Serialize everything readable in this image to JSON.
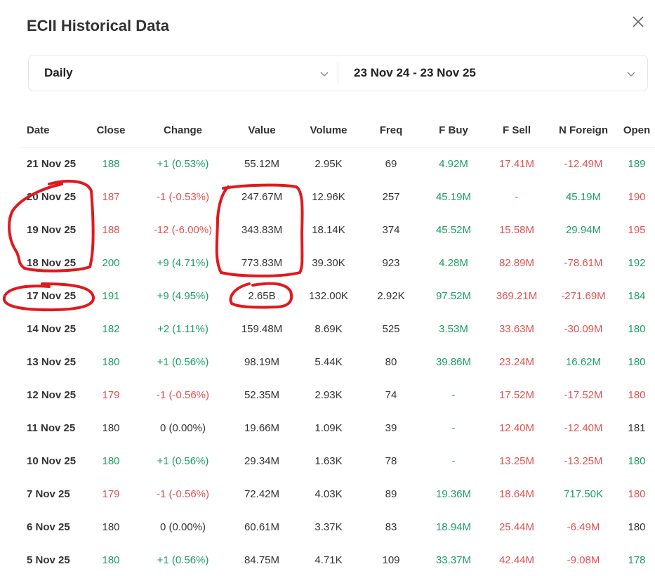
{
  "header": {
    "title": "ECII Historical Data"
  },
  "icons": {
    "close": "close-icon",
    "chevron": "chevron-down-icon"
  },
  "filters": {
    "period": "Daily",
    "date_range": "23 Nov 24 - 23 Nov 25"
  },
  "colors": {
    "up": "#1a9e63",
    "down": "#e05252",
    "annotation": "#e0191e"
  },
  "table": {
    "columns": [
      "Date",
      "Close",
      "Change",
      "Value",
      "Volume",
      "Freq",
      "F Buy",
      "F Sell",
      "N Foreign",
      "Open"
    ],
    "rows": [
      {
        "date": "21 Nov 25",
        "close": "188",
        "change": "+1 (0.53%)",
        "value": "55.12M",
        "volume": "2.95K",
        "freq": "69",
        "fbuy": "4.92M",
        "fsell": "17.41M",
        "nforeign": "-12.49M",
        "open": "189",
        "close_dir": "up",
        "change_dir": "up",
        "fbuy_dir": "up",
        "fsell_dir": "down",
        "nforeign_dir": "down",
        "open_dir": "up"
      },
      {
        "date": "20 Nov 25",
        "close": "187",
        "change": "-1 (-0.53%)",
        "value": "247.67M",
        "volume": "12.96K",
        "freq": "257",
        "fbuy": "45.19M",
        "fsell": "-",
        "nforeign": "45.19M",
        "open": "190",
        "close_dir": "down",
        "change_dir": "down",
        "fbuy_dir": "up",
        "fsell_dir": "down",
        "nforeign_dir": "up",
        "open_dir": "down"
      },
      {
        "date": "19 Nov 25",
        "close": "188",
        "change": "-12 (-6.00%)",
        "value": "343.83M",
        "volume": "18.14K",
        "freq": "374",
        "fbuy": "45.52M",
        "fsell": "15.58M",
        "nforeign": "29.94M",
        "open": "195",
        "close_dir": "down",
        "change_dir": "down",
        "fbuy_dir": "up",
        "fsell_dir": "down",
        "nforeign_dir": "up",
        "open_dir": "down"
      },
      {
        "date": "18 Nov 25",
        "close": "200",
        "change": "+9 (4.71%)",
        "value": "773.83M",
        "volume": "39.30K",
        "freq": "923",
        "fbuy": "4.28M",
        "fsell": "82.89M",
        "nforeign": "-78.61M",
        "open": "192",
        "close_dir": "up",
        "change_dir": "up",
        "fbuy_dir": "up",
        "fsell_dir": "down",
        "nforeign_dir": "down",
        "open_dir": "up"
      },
      {
        "date": "17 Nov 25",
        "close": "191",
        "change": "+9 (4.95%)",
        "value": "2.65B",
        "volume": "132.00K",
        "freq": "2.92K",
        "fbuy": "97.52M",
        "fsell": "369.21M",
        "nforeign": "-271.69M",
        "open": "184",
        "close_dir": "up",
        "change_dir": "up",
        "fbuy_dir": "up",
        "fsell_dir": "down",
        "nforeign_dir": "down",
        "open_dir": "up"
      },
      {
        "date": "14 Nov 25",
        "close": "182",
        "change": "+2 (1.11%)",
        "value": "159.48M",
        "volume": "8.69K",
        "freq": "525",
        "fbuy": "3.53M",
        "fsell": "33.63M",
        "nforeign": "-30.09M",
        "open": "180",
        "close_dir": "up",
        "change_dir": "up",
        "fbuy_dir": "up",
        "fsell_dir": "down",
        "nforeign_dir": "down",
        "open_dir": "up"
      },
      {
        "date": "13 Nov 25",
        "close": "180",
        "change": "+1 (0.56%)",
        "value": "98.19M",
        "volume": "5.44K",
        "freq": "80",
        "fbuy": "39.86M",
        "fsell": "23.24M",
        "nforeign": "16.62M",
        "open": "180",
        "close_dir": "up",
        "change_dir": "up",
        "fbuy_dir": "up",
        "fsell_dir": "down",
        "nforeign_dir": "up",
        "open_dir": "up"
      },
      {
        "date": "12 Nov 25",
        "close": "179",
        "change": "-1 (-0.56%)",
        "value": "52.35M",
        "volume": "2.93K",
        "freq": "74",
        "fbuy": "-",
        "fsell": "17.52M",
        "nforeign": "-17.52M",
        "open": "180",
        "close_dir": "down",
        "change_dir": "down",
        "fbuy_dir": "up",
        "fsell_dir": "down",
        "nforeign_dir": "down",
        "open_dir": "down"
      },
      {
        "date": "11 Nov 25",
        "close": "180",
        "change": "0 (0.00%)",
        "value": "19.66M",
        "volume": "1.09K",
        "freq": "39",
        "fbuy": "-",
        "fsell": "12.40M",
        "nforeign": "-12.40M",
        "open": "181",
        "close_dir": "flat",
        "change_dir": "flat",
        "fbuy_dir": "up",
        "fsell_dir": "down",
        "nforeign_dir": "down",
        "open_dir": "flat"
      },
      {
        "date": "10 Nov 25",
        "close": "180",
        "change": "+1 (0.56%)",
        "value": "29.34M",
        "volume": "1.63K",
        "freq": "78",
        "fbuy": "-",
        "fsell": "13.25M",
        "nforeign": "-13.25M",
        "open": "180",
        "close_dir": "up",
        "change_dir": "up",
        "fbuy_dir": "up",
        "fsell_dir": "down",
        "nforeign_dir": "down",
        "open_dir": "up"
      },
      {
        "date": "7 Nov 25",
        "close": "179",
        "change": "-1 (-0.56%)",
        "value": "72.42M",
        "volume": "4.03K",
        "freq": "89",
        "fbuy": "19.36M",
        "fsell": "18.64M",
        "nforeign": "717.50K",
        "open": "180",
        "close_dir": "down",
        "change_dir": "down",
        "fbuy_dir": "up",
        "fsell_dir": "down",
        "nforeign_dir": "up",
        "open_dir": "down"
      },
      {
        "date": "6 Nov 25",
        "close": "180",
        "change": "0 (0.00%)",
        "value": "60.61M",
        "volume": "3.37K",
        "freq": "83",
        "fbuy": "18.94M",
        "fsell": "25.44M",
        "nforeign": "-6.49M",
        "open": "180",
        "close_dir": "flat",
        "change_dir": "flat",
        "fbuy_dir": "up",
        "fsell_dir": "down",
        "nforeign_dir": "down",
        "open_dir": "flat"
      },
      {
        "date": "5 Nov 25",
        "close": "180",
        "change": "+1 (0.56%)",
        "value": "84.75M",
        "volume": "4.71K",
        "freq": "109",
        "fbuy": "33.37M",
        "fsell": "42.44M",
        "nforeign": "-9.08M",
        "open": "178",
        "close_dir": "up",
        "change_dir": "up",
        "fbuy_dir": "up",
        "fsell_dir": "down",
        "nforeign_dir": "down",
        "open_dir": "up"
      }
    ]
  }
}
